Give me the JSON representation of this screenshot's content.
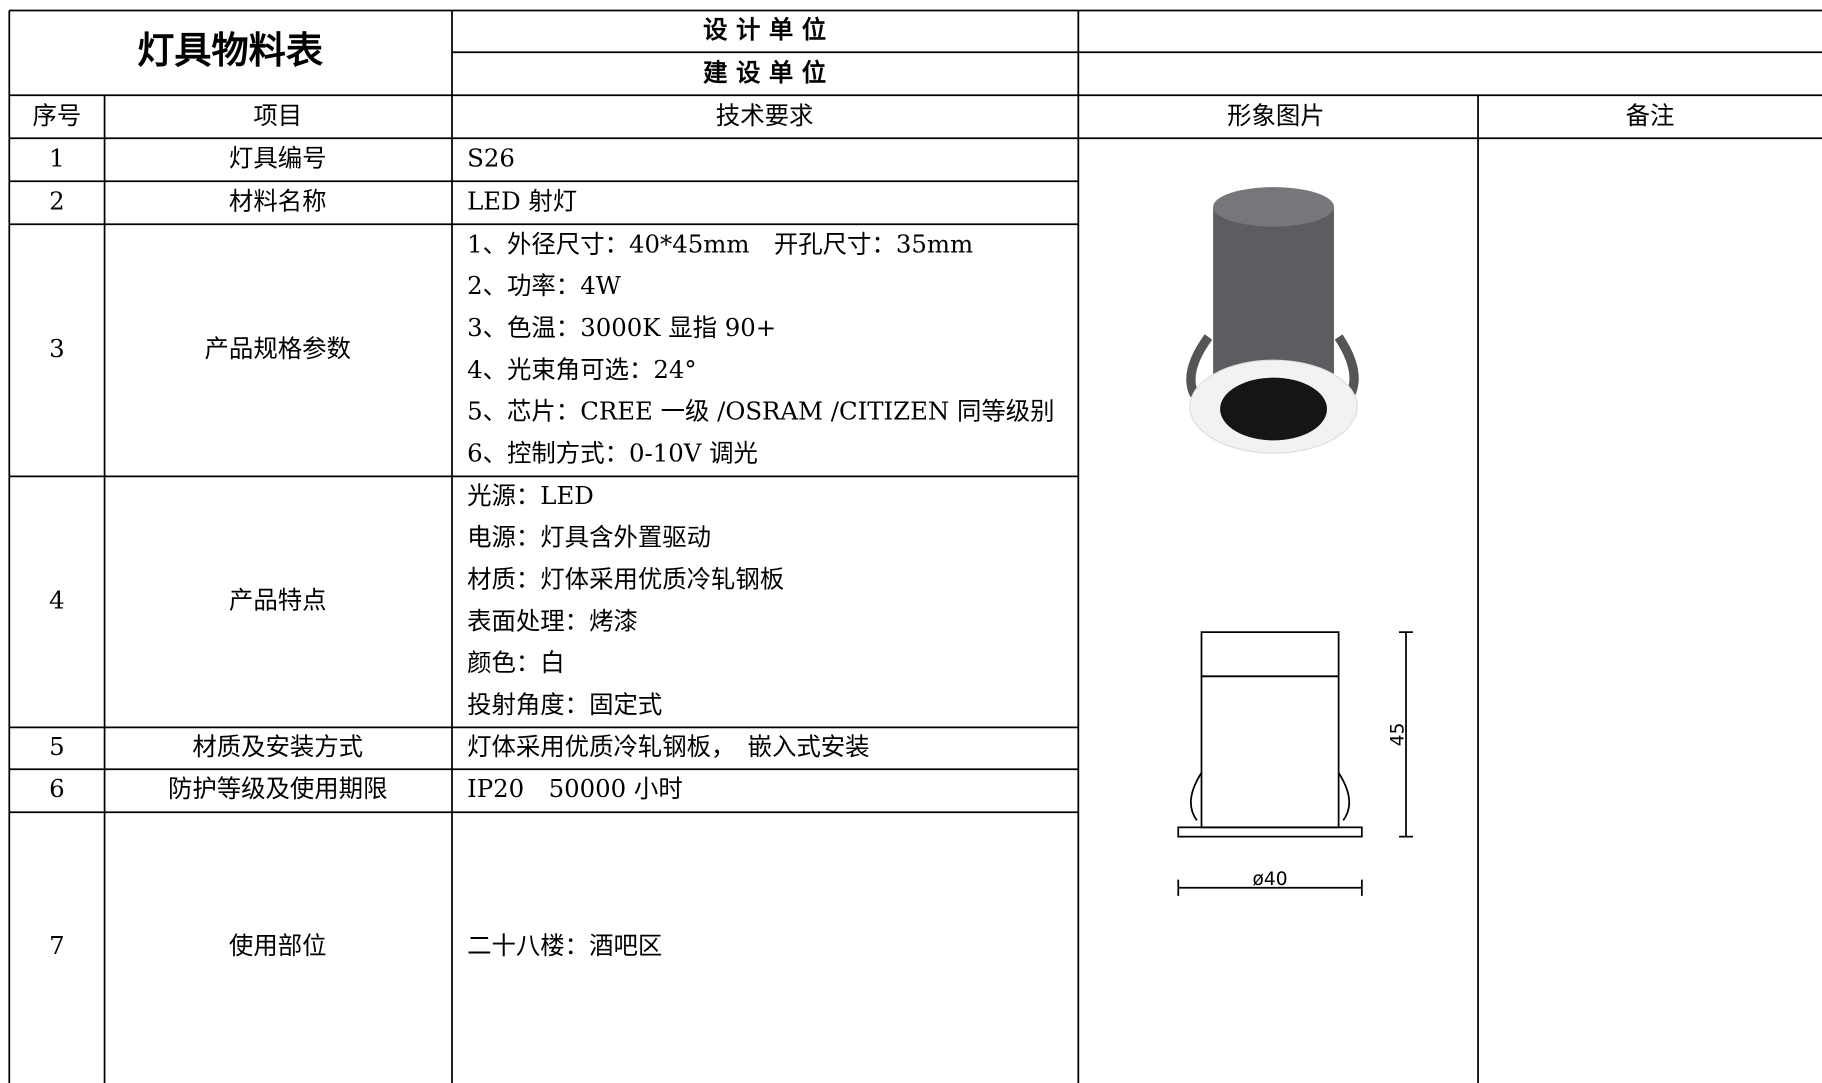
{
  "header": {
    "title": "灯具物料表",
    "design_unit": "设 计 单 位",
    "build_unit": "建 设 单 位"
  },
  "columns": [
    "序号",
    "项目",
    "技术要求",
    "形象图片",
    "备注"
  ],
  "rows": [
    {
      "no": "1",
      "item": "灯具编号",
      "spec": [
        "S26"
      ]
    },
    {
      "no": "2",
      "item": "材料名称",
      "spec": [
        "LED 射灯"
      ]
    },
    {
      "no": "3",
      "item": "产品规格参数",
      "spec": [
        "1、外径尺寸：40*45mm　开孔尺寸：35mm",
        "2、功率：4W",
        "3、色温：3000K 显指 90+",
        "4、光束角可选：24°",
        "5、芯片：CREE 一级 /OSRAM /CITIZEN 同等级别",
        "6、控制方式：0-10V 调光"
      ]
    },
    {
      "no": "4",
      "item": "产品特点",
      "spec": [
        "光源：LED",
        "电源：灯具含外置驱动",
        "材质：灯体采用优质冷轧钢板",
        "表面处理：烤漆",
        "颜色：白",
        "投射角度：固定式"
      ]
    },
    {
      "no": "5",
      "item": "材质及安装方式",
      "spec": [
        "灯体采用优质冷轧钢板，　嵌入式安装"
      ]
    },
    {
      "no": "6",
      "item": "防护等级及使用期限",
      "spec": [
        "IP20　50000 小时"
      ]
    },
    {
      "no": "7",
      "item": "使用部位",
      "spec": [
        "二十八楼：酒吧区"
      ]
    }
  ],
  "drawing": {
    "height_label": "45",
    "width_label": "ø40"
  }
}
